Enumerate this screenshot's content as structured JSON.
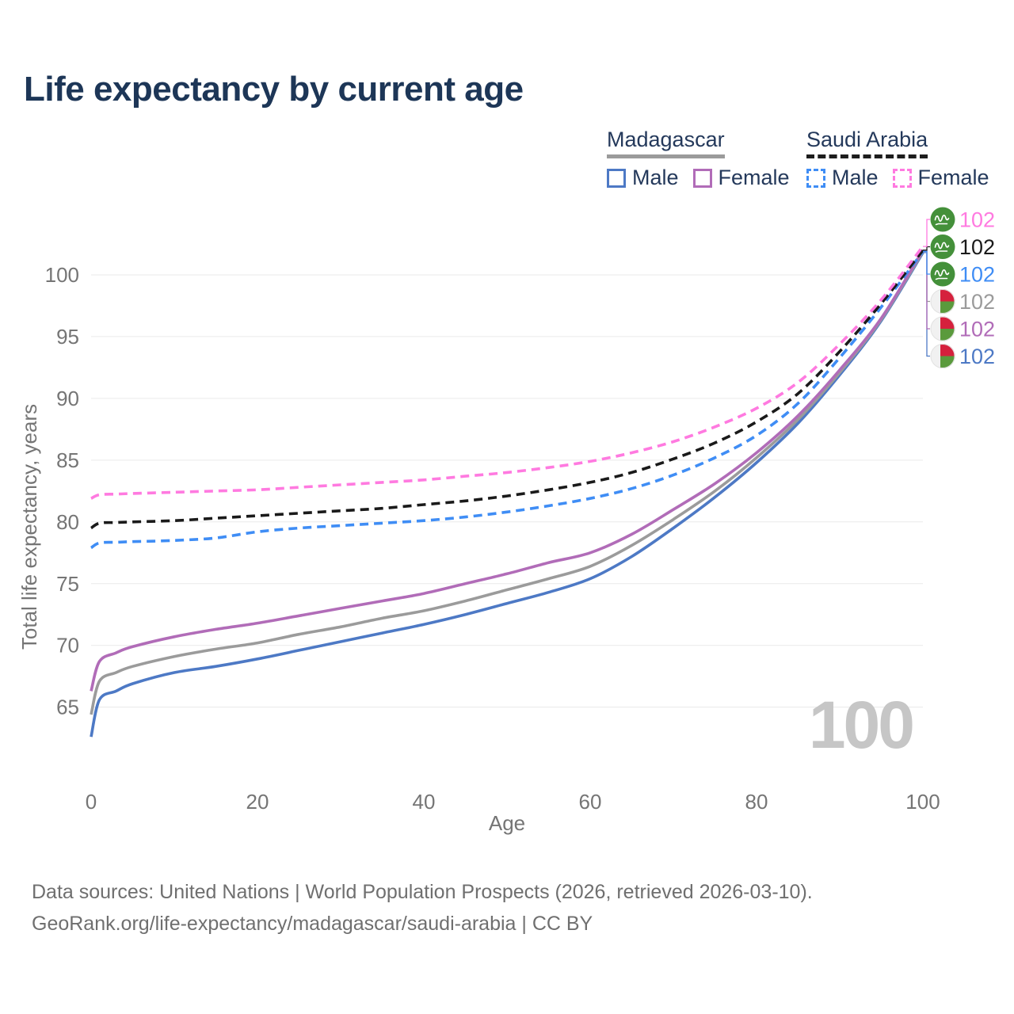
{
  "title": "Life expectancy by current age",
  "watermark": "100",
  "legend": {
    "groups": [
      {
        "name": "Madagascar",
        "line_style": "solid",
        "line_color": "#9b9b9b",
        "items": [
          {
            "label": "Male",
            "series_key": "mg_male"
          },
          {
            "label": "Female",
            "series_key": "mg_female"
          }
        ]
      },
      {
        "name": "Saudi Arabia",
        "line_style": "dashed",
        "line_color": "#1d1d1d",
        "items": [
          {
            "label": "Male",
            "series_key": "sa_male"
          },
          {
            "label": "Female",
            "series_key": "sa_female"
          }
        ]
      }
    ]
  },
  "footer": {
    "line1": "Data sources: United Nations | World Population Prospects (2026, retrieved 2026-03-10).",
    "line2": "GeoRank.org/life-expectancy/madagascar/saudi-arabia | CC BY"
  },
  "chart_data": {
    "type": "line",
    "title": "Life expectancy by current age",
    "xlabel": "Age",
    "ylabel": "Total life expectancy, years",
    "xlim": [
      0,
      100
    ],
    "ylim": [
      62,
      103
    ],
    "x_ticks": [
      0,
      20,
      40,
      60,
      80,
      100
    ],
    "y_ticks": [
      65,
      70,
      75,
      80,
      85,
      90,
      95,
      100
    ],
    "grid": "horizontal",
    "legend_position": "top-right",
    "x": [
      0,
      1,
      3,
      5,
      10,
      15,
      20,
      25,
      30,
      35,
      40,
      45,
      50,
      55,
      60,
      65,
      70,
      75,
      80,
      85,
      90,
      95,
      100
    ],
    "series": [
      {
        "key": "mg_male",
        "name": "Madagascar Male",
        "country": "Madagascar",
        "flag": "madagascar",
        "color": "#4d79c5",
        "dashed": false,
        "label_slot": 5,
        "end_label": "102",
        "values": [
          62.6,
          65.6,
          66.3,
          66.9,
          67.8,
          68.3,
          68.9,
          69.6,
          70.3,
          71.0,
          71.7,
          72.5,
          73.4,
          74.3,
          75.4,
          77.2,
          79.5,
          82.0,
          84.8,
          88.0,
          91.9,
          96.3,
          101.8
        ]
      },
      {
        "key": "mg_total",
        "name": "Madagascar",
        "country": "Madagascar",
        "flag": "madagascar",
        "color": "#9b9b9b",
        "dashed": false,
        "label_slot": 3,
        "end_label": "102",
        "values": [
          64.4,
          67.1,
          67.8,
          68.3,
          69.1,
          69.7,
          70.2,
          70.9,
          71.5,
          72.2,
          72.8,
          73.6,
          74.5,
          75.4,
          76.4,
          78.1,
          80.2,
          82.5,
          85.2,
          88.3,
          92.1,
          96.4,
          101.9
        ]
      },
      {
        "key": "mg_female",
        "name": "Madagascar Female",
        "country": "Madagascar",
        "flag": "madagascar",
        "color": "#b16cb8",
        "dashed": false,
        "label_slot": 4,
        "end_label": "102",
        "values": [
          66.3,
          68.7,
          69.4,
          69.9,
          70.7,
          71.3,
          71.8,
          72.4,
          73.0,
          73.6,
          74.2,
          75.0,
          75.8,
          76.7,
          77.5,
          79.0,
          81.0,
          83.1,
          85.6,
          88.6,
          92.3,
          96.5,
          102.0
        ]
      },
      {
        "key": "sa_male",
        "name": "Saudi Arabia Male",
        "country": "Saudi Arabia",
        "flag": "saudi-arabia",
        "color": "#3f8df5",
        "dashed": true,
        "label_slot": 2,
        "end_label": "102",
        "values": [
          77.9,
          78.3,
          78.35,
          78.4,
          78.5,
          78.7,
          79.2,
          79.5,
          79.7,
          79.9,
          80.1,
          80.4,
          80.8,
          81.3,
          81.9,
          82.7,
          83.8,
          85.2,
          87.0,
          89.6,
          93.3,
          97.4,
          101.9
        ]
      },
      {
        "key": "sa_total",
        "name": "Saudi Arabia",
        "country": "Saudi Arabia",
        "flag": "saudi-arabia",
        "color": "#1a1a1a",
        "dashed": true,
        "label_slot": 1,
        "end_label": "102",
        "values": [
          79.5,
          79.9,
          79.95,
          80.0,
          80.1,
          80.3,
          80.5,
          80.7,
          80.9,
          81.1,
          81.4,
          81.7,
          82.1,
          82.6,
          83.2,
          84.0,
          85.1,
          86.4,
          88.1,
          90.4,
          93.8,
          97.7,
          102.0
        ]
      },
      {
        "key": "sa_female",
        "name": "Saudi Arabia Female",
        "country": "Saudi Arabia",
        "flag": "saudi-arabia",
        "color": "#ff7ae0",
        "dashed": true,
        "label_slot": 0,
        "end_label": "102",
        "values": [
          81.9,
          82.2,
          82.25,
          82.3,
          82.4,
          82.5,
          82.6,
          82.8,
          83.0,
          83.2,
          83.4,
          83.7,
          84.0,
          84.4,
          84.9,
          85.6,
          86.5,
          87.7,
          89.2,
          91.3,
          94.4,
          98.0,
          102.3
        ]
      }
    ]
  }
}
